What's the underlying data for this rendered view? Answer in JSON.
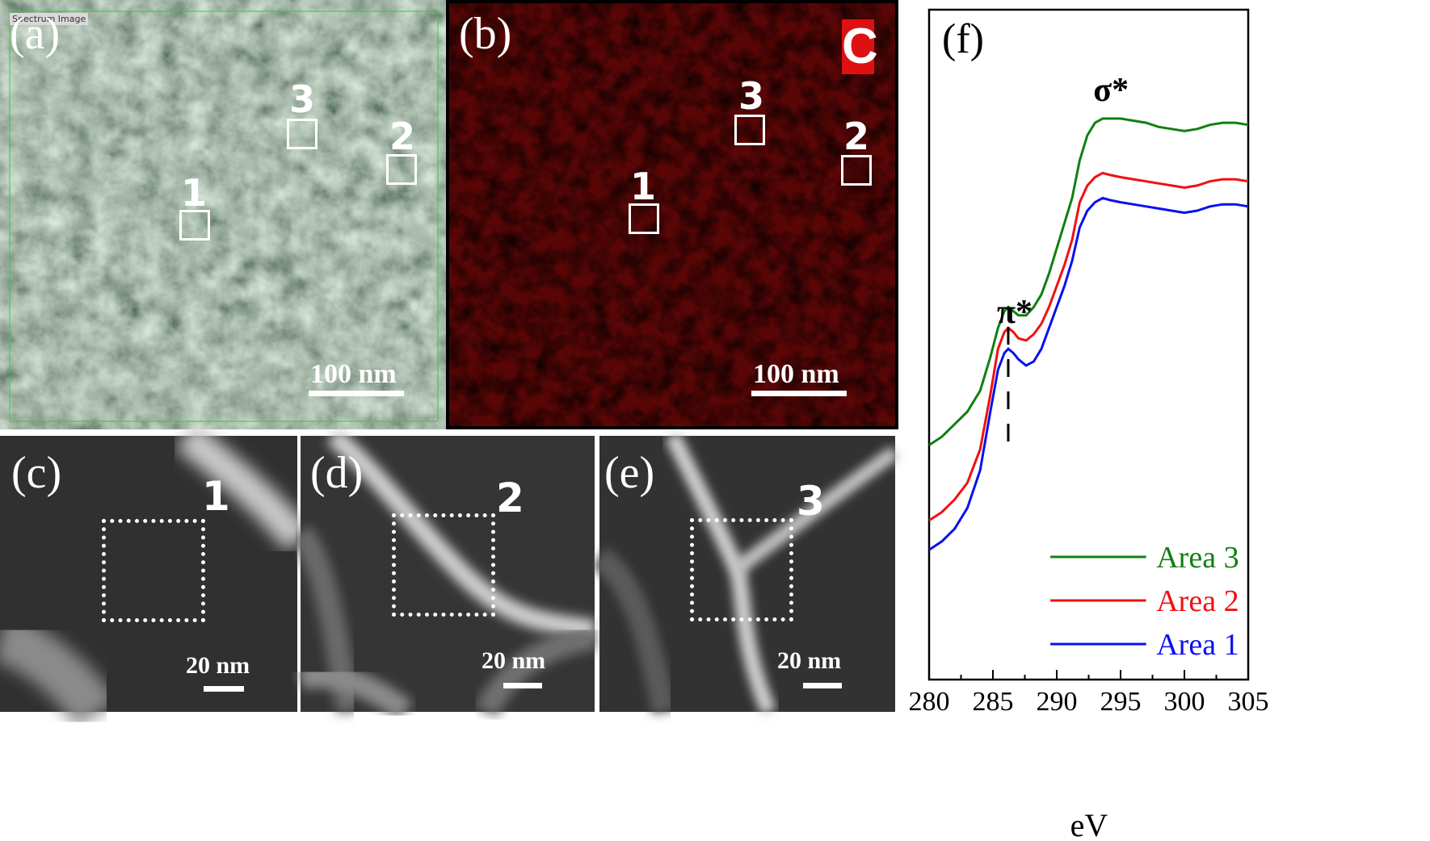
{
  "panels": {
    "a": {
      "label": "(a)",
      "tag": "Spectrum Image",
      "scale": "100 nm",
      "markers": [
        "1",
        "2",
        "3"
      ]
    },
    "b": {
      "label": "(b)",
      "element": "C",
      "scale": "100 nm",
      "markers": [
        "1",
        "2",
        "3"
      ]
    },
    "c": {
      "label": "(c)",
      "marker": "1",
      "scale": "20 nm"
    },
    "d": {
      "label": "(d)",
      "marker": "2",
      "scale": "20 nm"
    },
    "e": {
      "label": "(e)",
      "marker": "3",
      "scale": "20 nm"
    }
  },
  "colors": {
    "area1": "#0a10f0",
    "area2": "#f01010",
    "area3": "#108010",
    "map": "#d01010"
  },
  "chart_data": {
    "type": "line",
    "panel_label": "(f)",
    "xlabel": "eV",
    "ylabel": "",
    "xlim": [
      280,
      305
    ],
    "xticks": [
      "280",
      "285",
      "290",
      "295",
      "300",
      "305"
    ],
    "annotations": {
      "pi": "π*",
      "sigma": "σ*",
      "pi_energy": 286.2
    },
    "series": [
      {
        "name": "Area 3",
        "color": "#108010",
        "x": [
          280,
          281,
          282,
          283,
          284,
          284.8,
          285.4,
          285.9,
          286.2,
          286.6,
          287.0,
          287.6,
          288.2,
          288.8,
          289.4,
          290.0,
          290.6,
          291.2,
          291.8,
          292.4,
          293.0,
          293.6,
          294.2,
          295,
          296,
          297,
          298,
          299,
          300,
          301,
          302,
          303,
          304,
          305
        ],
        "y": [
          0.21,
          0.23,
          0.26,
          0.29,
          0.34,
          0.42,
          0.49,
          0.53,
          0.54,
          0.53,
          0.52,
          0.52,
          0.54,
          0.57,
          0.62,
          0.68,
          0.74,
          0.8,
          0.89,
          0.95,
          0.98,
          0.99,
          0.99,
          0.99,
          0.985,
          0.98,
          0.97,
          0.965,
          0.96,
          0.965,
          0.975,
          0.98,
          0.98,
          0.975
        ]
      },
      {
        "name": "Area 2",
        "color": "#f01010",
        "x": [
          280,
          281,
          282,
          283,
          284,
          284.8,
          285.4,
          285.9,
          286.2,
          286.6,
          287.0,
          287.6,
          288.2,
          288.8,
          289.4,
          290.0,
          290.6,
          291.2,
          291.8,
          292.4,
          293.0,
          293.6,
          294.2,
          295,
          296,
          297,
          298,
          299,
          300,
          301,
          302,
          303,
          304,
          305
        ],
        "y": [
          0.03,
          0.05,
          0.08,
          0.12,
          0.2,
          0.33,
          0.44,
          0.48,
          0.49,
          0.48,
          0.465,
          0.46,
          0.475,
          0.5,
          0.54,
          0.59,
          0.64,
          0.7,
          0.79,
          0.83,
          0.85,
          0.86,
          0.855,
          0.85,
          0.845,
          0.84,
          0.835,
          0.83,
          0.825,
          0.83,
          0.84,
          0.845,
          0.845,
          0.84
        ]
      },
      {
        "name": "Area 1",
        "color": "#0a10f0",
        "x": [
          280,
          281,
          282,
          283,
          284,
          284.8,
          285.4,
          285.9,
          286.2,
          286.6,
          287.0,
          287.6,
          288.2,
          288.8,
          289.4,
          290.0,
          290.6,
          291.2,
          291.8,
          292.4,
          293.0,
          293.6,
          294.2,
          295,
          296,
          297,
          298,
          299,
          300,
          301,
          302,
          303,
          304,
          305
        ],
        "y": [
          -0.04,
          -0.02,
          0.01,
          0.06,
          0.15,
          0.29,
          0.39,
          0.43,
          0.44,
          0.43,
          0.415,
          0.4,
          0.41,
          0.44,
          0.49,
          0.54,
          0.59,
          0.65,
          0.73,
          0.77,
          0.79,
          0.8,
          0.795,
          0.79,
          0.785,
          0.78,
          0.775,
          0.77,
          0.765,
          0.77,
          0.78,
          0.785,
          0.785,
          0.78
        ]
      }
    ]
  }
}
